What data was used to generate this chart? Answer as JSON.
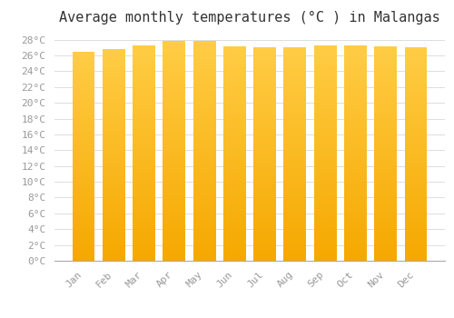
{
  "title": "Average monthly temperatures (°C ) in Malangas",
  "months": [
    "Jan",
    "Feb",
    "Mar",
    "Apr",
    "May",
    "Jun",
    "Jul",
    "Aug",
    "Sep",
    "Oct",
    "Nov",
    "Dec"
  ],
  "values": [
    26.5,
    26.8,
    27.3,
    27.8,
    27.9,
    27.2,
    27.0,
    27.1,
    27.3,
    27.3,
    27.2,
    27.0
  ],
  "bar_color_top": "#FFCC44",
  "bar_color_bottom": "#F5A800",
  "bar_edge_color": "#E09000",
  "background_color": "#FFFFFF",
  "plot_bg_color": "#FFFFFF",
  "grid_color": "#DDDDDD",
  "ylim": [
    0,
    29
  ],
  "ytick_step": 2,
  "title_fontsize": 11,
  "tick_fontsize": 8,
  "tick_font_color": "#999999",
  "title_color": "#333333",
  "bar_width": 0.75
}
